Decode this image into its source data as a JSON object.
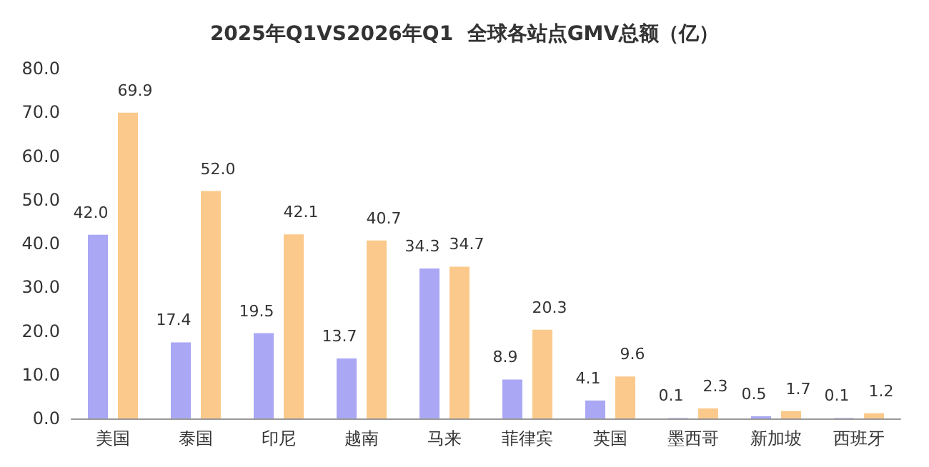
{
  "chart_data": {
    "type": "bar",
    "title": "2025年Q1VS2026年Q1  全球各站点GMV总额（亿）",
    "categories": [
      "美国",
      "泰国",
      "印尼",
      "越南",
      "马来",
      "菲律宾",
      "英国",
      "墨西哥",
      "新加坡",
      "西班牙"
    ],
    "series": [
      {
        "color": "#aaa7f5",
        "values": [
          42.0,
          17.4,
          19.5,
          13.7,
          34.3,
          8.9,
          4.1,
          0.1,
          0.5,
          0.1
        ],
        "value_labels": [
          "42.0",
          "17.4",
          "19.5",
          "13.7",
          "34.3",
          "8.9",
          "4.1",
          "0.1",
          "0.5",
          "0.1"
        ]
      },
      {
        "color": "#fbc98b",
        "values": [
          69.9,
          52.0,
          42.1,
          40.7,
          34.7,
          20.3,
          9.6,
          2.3,
          1.7,
          1.2
        ],
        "value_labels": [
          "69.9",
          "52.0",
          "42.1",
          "40.7",
          "34.7",
          "20.3",
          "9.6",
          "2.3",
          "1.7",
          "1.2"
        ]
      }
    ],
    "ylim": [
      0,
      80
    ],
    "yticks": [
      {
        "value": 0,
        "label": "0.0"
      },
      {
        "value": 10,
        "label": "10.0"
      },
      {
        "value": 20,
        "label": "20.0"
      },
      {
        "value": 30,
        "label": "30.0"
      },
      {
        "value": 40,
        "label": "40.0"
      },
      {
        "value": 50,
        "label": "50.0"
      },
      {
        "value": 60,
        "label": "60.0"
      },
      {
        "value": 70,
        "label": "70.0"
      },
      {
        "value": 80,
        "label": "80.0"
      }
    ],
    "grid": false
  }
}
